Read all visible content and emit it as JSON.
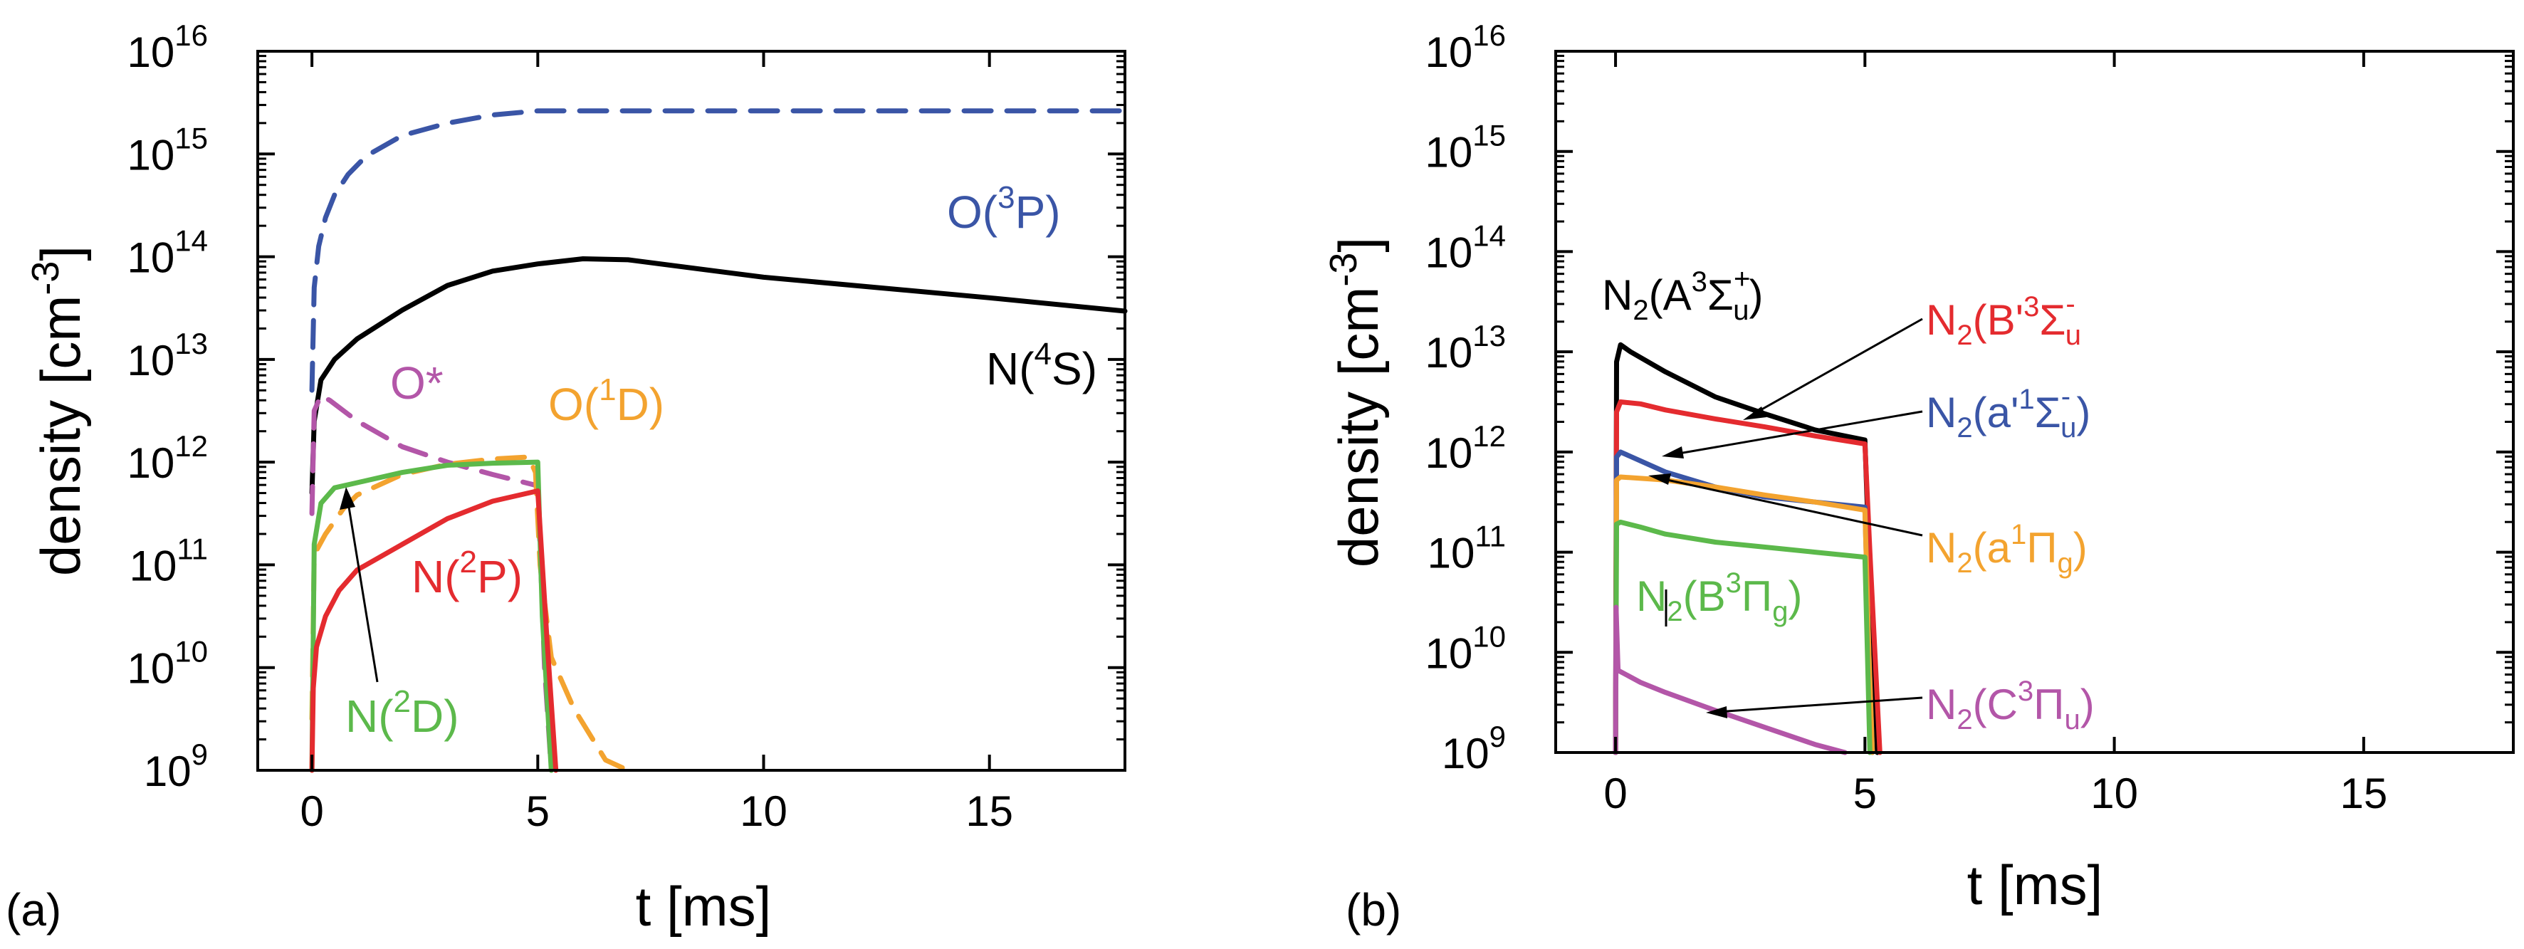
{
  "chart_data": [
    {
      "type": "line",
      "panel_label": "(a)",
      "xlabel": "t [ms]",
      "ylabel": "density [cm",
      "ylabel_exp": "-3",
      "ylabel_close": "]",
      "yscale": "log",
      "xlim": [
        -1.2,
        18
      ],
      "ylim_exp": [
        9,
        16
      ],
      "x_ticks": [
        0,
        5,
        10,
        15
      ],
      "y_tick_exps": [
        9,
        10,
        11,
        12,
        13,
        14,
        15,
        16
      ],
      "series": [
        {
          "name": "O(3P)",
          "color": "#3a55a6",
          "dash": "dashed",
          "x": [
            0,
            0.05,
            0.15,
            0.3,
            0.5,
            0.8,
            1.2,
            2,
            3,
            4,
            5,
            6,
            10,
            18
          ],
          "y_exp": [
            12.7,
            13.7,
            14.1,
            14.38,
            14.6,
            14.8,
            14.98,
            15.18,
            15.3,
            15.38,
            15.42,
            15.42,
            15.42,
            15.42
          ]
        },
        {
          "name": "N(4S)",
          "color": "#000000",
          "dash": "solid",
          "x": [
            0,
            0.05,
            0.2,
            0.5,
            1,
            2,
            3,
            4,
            5,
            6,
            7,
            10,
            15,
            18
          ],
          "y_exp": [
            11.7,
            12.4,
            12.8,
            13.0,
            13.2,
            13.48,
            13.72,
            13.86,
            13.93,
            13.98,
            13.97,
            13.8,
            13.6,
            13.47
          ]
        },
        {
          "name": "O*",
          "color": "#b356a8",
          "dash": "dashed",
          "x": [
            0,
            0.05,
            0.2,
            0.4,
            1,
            2,
            3,
            4,
            5,
            5.15,
            5.3
          ],
          "y_exp": [
            11.5,
            12.5,
            12.65,
            12.6,
            12.4,
            12.15,
            12.0,
            11.88,
            11.77,
            10.0,
            9.0
          ]
        },
        {
          "name": "O(1D)",
          "color": "#f3a32f",
          "dash": "dashed",
          "x": [
            0,
            0.05,
            0.3,
            0.7,
            1,
            2,
            3,
            4,
            4.8,
            4.95,
            5.05,
            5.3,
            5.8,
            6.5,
            7.0
          ],
          "y_exp": [
            9.5,
            11.1,
            11.3,
            11.55,
            11.68,
            11.88,
            11.98,
            12.03,
            12.05,
            11.9,
            11.0,
            10.1,
            9.6,
            9.1,
            9.0
          ]
        },
        {
          "name": "N(2D)",
          "color": "#5cb94b",
          "dash": "solid",
          "x": [
            0,
            0.05,
            0.2,
            0.5,
            1,
            2,
            3,
            4,
            5,
            5.1,
            5.3
          ],
          "y_exp": [
            9.0,
            11.2,
            11.6,
            11.75,
            11.8,
            11.9,
            11.97,
            11.99,
            12.0,
            10.5,
            9.0
          ]
        },
        {
          "name": "N(2P)",
          "color": "#e42b2f",
          "dash": "solid",
          "x": [
            0,
            0.03,
            0.1,
            0.3,
            0.6,
            1,
            2,
            3,
            4,
            5,
            5.2,
            5.4
          ],
          "y_exp": [
            9.0,
            9.8,
            10.2,
            10.5,
            10.75,
            10.95,
            11.2,
            11.45,
            11.62,
            11.72,
            10.3,
            9.0
          ]
        }
      ],
      "annotations": [
        {
          "base": "O(",
          "sup": "3",
          "tail": "P)",
          "color": "#3a55a6"
        },
        {
          "base": "N(",
          "sup": "4",
          "tail": "S)",
          "color": "#000000"
        },
        {
          "base": "O*",
          "sup": "",
          "tail": "",
          "color": "#b356a8"
        },
        {
          "base": "O(",
          "sup": "1",
          "tail": "D)",
          "color": "#f3a32f"
        },
        {
          "base": "N(",
          "sup": "2",
          "tail": "P)",
          "color": "#e42b2f"
        },
        {
          "base": "N(",
          "sup": "2",
          "tail": "D)",
          "color": "#5cb94b"
        }
      ]
    },
    {
      "type": "line",
      "panel_label": "(b)",
      "xlabel": "t [ms]",
      "ylabel": "density [cm",
      "ylabel_exp": "-3",
      "ylabel_close": "]",
      "yscale": "log",
      "xlim": [
        -1.2,
        18
      ],
      "ylim_exp": [
        9,
        16
      ],
      "x_ticks": [
        0,
        5,
        10,
        15
      ],
      "y_tick_exps": [
        9,
        10,
        11,
        12,
        13,
        14,
        15,
        16
      ],
      "series": [
        {
          "name": "N2(A3Σu+)",
          "color": "#000000",
          "dash": "solid",
          "x": [
            0,
            0.02,
            0.1,
            0.3,
            1,
            2,
            3,
            4,
            5,
            5.08,
            5.15,
            5.25
          ],
          "y_exp": [
            9.0,
            12.9,
            13.07,
            13.0,
            12.8,
            12.55,
            12.38,
            12.22,
            12.12,
            11.0,
            10.0,
            9.0
          ]
        },
        {
          "name": "N2(B'3Σu-)",
          "color": "#e42b2f",
          "dash": "solid",
          "x": [
            0,
            0.02,
            0.1,
            0.5,
            1,
            2,
            3,
            4,
            5,
            5.1,
            5.2,
            5.3
          ],
          "y_exp": [
            9.0,
            12.4,
            12.5,
            12.48,
            12.42,
            12.33,
            12.25,
            12.16,
            12.08,
            11.0,
            10.0,
            9.0
          ]
        },
        {
          "name": "N2(a'1Σu-)",
          "color": "#3a55a6",
          "dash": "solid",
          "x": [
            0,
            0.02,
            0.1,
            1,
            2,
            3,
            4,
            5,
            5.08,
            5.15
          ],
          "y_exp": [
            9.0,
            11.95,
            12.0,
            11.8,
            11.65,
            11.55,
            11.5,
            11.45,
            10.0,
            9.0
          ]
        },
        {
          "name": "N2(a1Πg)",
          "color": "#f3a32f",
          "dash": "solid",
          "x": [
            0,
            0.02,
            0.1,
            1,
            2,
            3,
            4,
            5,
            5.08,
            5.15
          ],
          "y_exp": [
            9.0,
            11.72,
            11.75,
            11.72,
            11.65,
            11.57,
            11.5,
            11.42,
            10.0,
            9.0
          ]
        },
        {
          "name": "N2(B3Πg)",
          "color": "#5cb94b",
          "dash": "solid",
          "x": [
            0,
            0.02,
            0.1,
            0.5,
            1,
            2,
            3,
            4,
            5,
            5.05,
            5.1
          ],
          "y_exp": [
            9.0,
            11.28,
            11.3,
            11.25,
            11.18,
            11.1,
            11.05,
            11.0,
            10.95,
            10.0,
            9.0
          ]
        },
        {
          "name": "N2(C3Πu)",
          "color": "#b356a8",
          "dash": "solid",
          "x": [
            0,
            0.01,
            0.05,
            0.2,
            0.5,
            1,
            2,
            3,
            4,
            4.6
          ],
          "y_exp": [
            9.0,
            10.45,
            9.82,
            9.78,
            9.7,
            9.6,
            9.42,
            9.25,
            9.08,
            9.0
          ]
        }
      ],
      "annotations": [
        {
          "name": "N2(A3Σu+)",
          "color": "#000000"
        },
        {
          "name": "N2(B'3Σu-)",
          "color": "#e42b2f"
        },
        {
          "name": "N2(a'1Σu-)",
          "color": "#3a55a6"
        },
        {
          "name": "N2(a1Πg)",
          "color": "#f3a32f"
        },
        {
          "name": "N2(B3Πg)",
          "color": "#5cb94b"
        },
        {
          "name": "N2(C3Πu)",
          "color": "#b356a8"
        }
      ]
    }
  ]
}
